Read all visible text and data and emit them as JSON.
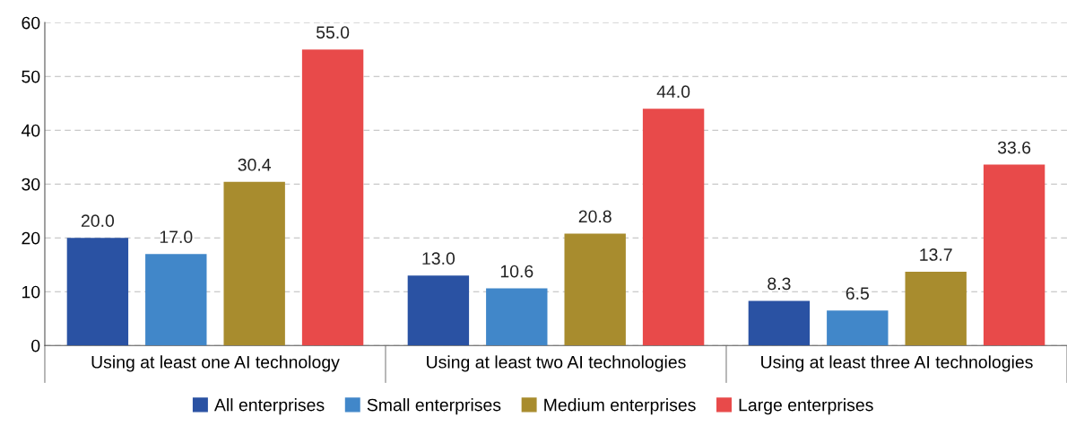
{
  "chart_data": {
    "type": "bar",
    "categories": [
      "Using at least one AI technology",
      "Using at least two AI technologies",
      "Using at least three AI technologies"
    ],
    "series": [
      {
        "name": "All enterprises",
        "color": "#2a52a3",
        "values": [
          20.0,
          13.0,
          8.3
        ],
        "value_labels": [
          "20.0",
          "13.0",
          "8.3"
        ]
      },
      {
        "name": "Small enterprises",
        "color": "#4187c9",
        "values": [
          17.0,
          10.6,
          6.5
        ],
        "value_labels": [
          "17.0",
          "10.6",
          "6.5"
        ]
      },
      {
        "name": "Medium enterprises",
        "color": "#a88c2e",
        "values": [
          30.4,
          20.8,
          13.7
        ],
        "value_labels": [
          "30.4",
          "20.8",
          "13.7"
        ]
      },
      {
        "name": "Large enterprises",
        "color": "#e84a4a",
        "values": [
          55.0,
          44.0,
          33.6
        ],
        "value_labels": [
          "55.0",
          "44.0",
          "33.6"
        ]
      }
    ],
    "ylim": [
      0,
      60
    ],
    "yticks": [
      0,
      10,
      20,
      30,
      40,
      50,
      60
    ],
    "grid": "y",
    "legend": "bottom"
  }
}
